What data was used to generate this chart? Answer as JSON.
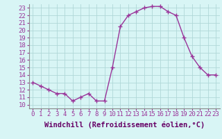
{
  "hours": [
    0,
    1,
    2,
    3,
    4,
    5,
    6,
    7,
    8,
    9,
    10,
    11,
    12,
    13,
    14,
    15,
    16,
    17,
    18,
    19,
    20,
    21,
    22,
    23
  ],
  "values": [
    13,
    12.5,
    12,
    11.5,
    11.5,
    10.5,
    11,
    11.5,
    10.5,
    10.5,
    15,
    20.5,
    22,
    22.5,
    23,
    23.2,
    23.2,
    22.5,
    22,
    19,
    16.5,
    15,
    14,
    14
  ],
  "line_color": "#993399",
  "marker": "+",
  "marker_size": 4,
  "bg_color": "#d8f5f5",
  "grid_color": "#b0d8d8",
  "xlabel": "Windchill (Refroidissement éolien,°C)",
  "xlabel_color": "#660066",
  "xlabel_fontsize": 7.5,
  "ylim": [
    9.5,
    23.5
  ],
  "yticks": [
    10,
    11,
    12,
    13,
    14,
    15,
    16,
    17,
    18,
    19,
    20,
    21,
    22,
    23
  ],
  "xticks": [
    0,
    1,
    2,
    3,
    4,
    5,
    6,
    7,
    8,
    9,
    10,
    11,
    12,
    13,
    14,
    15,
    16,
    17,
    18,
    19,
    20,
    21,
    22,
    23
  ],
  "tick_fontsize": 6.5,
  "line_width": 1.0,
  "spine_color": "#888888"
}
